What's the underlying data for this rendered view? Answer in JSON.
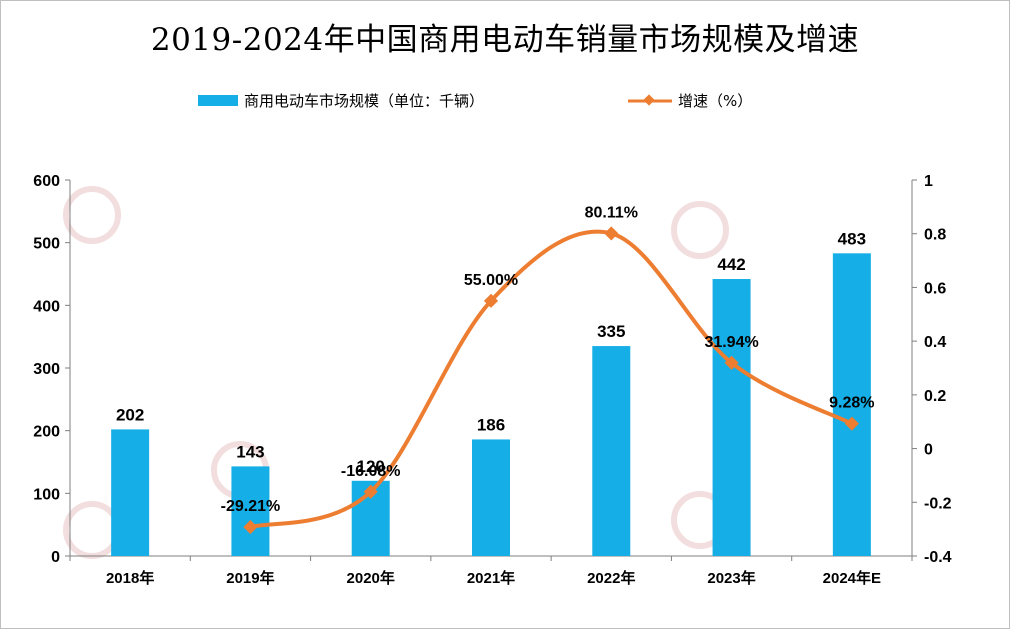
{
  "title": "2019-2024年中国商用电动车销量市场规模及增速",
  "colors": {
    "bar": "#15aee6",
    "line": "#ed7d31",
    "axis": "#7f7f7f",
    "watermark": "#f2dede"
  },
  "chart_data": {
    "type": "bar+line",
    "categories": [
      "2018年",
      "2019年",
      "2020年",
      "2021年",
      "2022年",
      "2023年",
      "2024年E"
    ],
    "series": [
      {
        "name": "商用电动车市场规模（单位：千辆）",
        "type": "bar",
        "axis": "left",
        "values": [
          202,
          143,
          120,
          186,
          335,
          442,
          483
        ],
        "labels": [
          "202",
          "143",
          "120",
          "186",
          "335",
          "442",
          "483"
        ]
      },
      {
        "name": "增速（%）",
        "type": "line",
        "axis": "right",
        "values": [
          null,
          -0.2921,
          -0.1608,
          0.55,
          0.8011,
          0.3194,
          0.0928
        ],
        "labels": [
          "",
          "-29.21%",
          "-16.08%",
          "55.00%",
          "80.11%",
          "31.94%",
          "9.28%"
        ]
      }
    ],
    "y_left": {
      "min": 0,
      "max": 600,
      "ticks": [
        "0",
        "100",
        "200",
        "300",
        "400",
        "500",
        "600"
      ]
    },
    "y_right": {
      "min": -0.4,
      "max": 1,
      "ticks": [
        "-0.4",
        "-0.2",
        "0",
        "0.2",
        "0.4",
        "0.6",
        "0.8",
        "1"
      ]
    },
    "grid": false,
    "legend_position": "top"
  }
}
